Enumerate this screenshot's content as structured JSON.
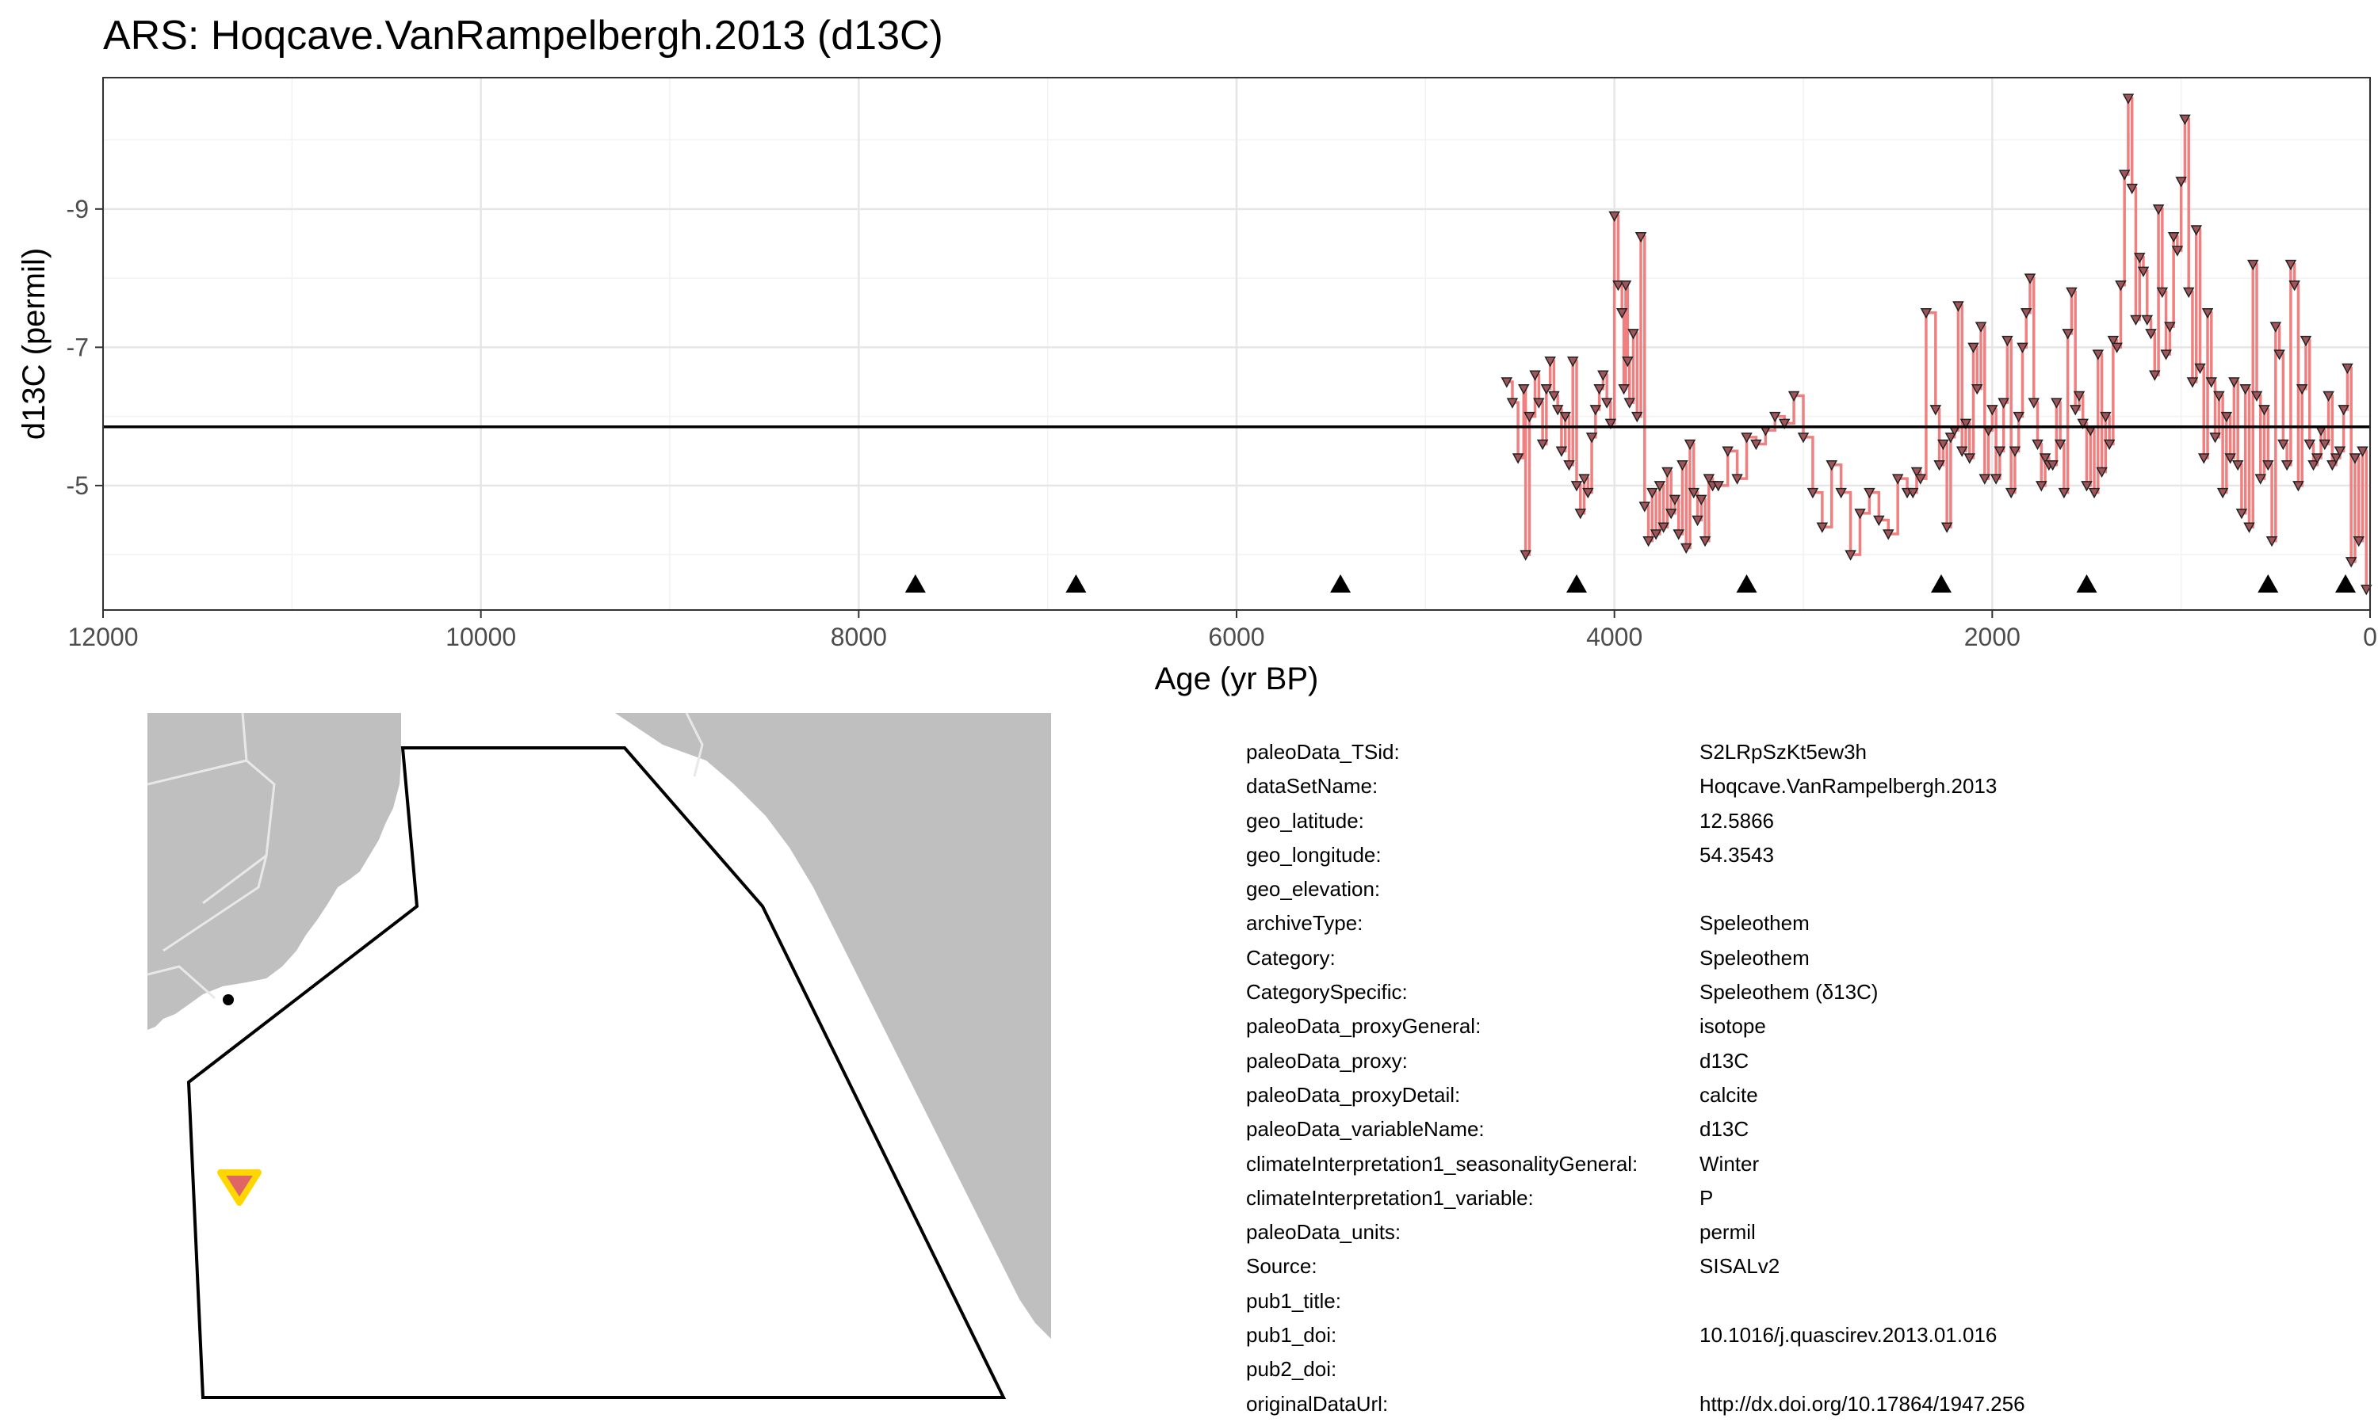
{
  "chart_data": {
    "type": "line",
    "title": "ARS: Hoqcave.VanRampelbergh.2013 (d13C)",
    "xlabel": "Age (yr BP)",
    "ylabel": "d13C (permil)",
    "x_reversed": true,
    "y_reversed": true,
    "xlim": [
      12000,
      0
    ],
    "ylim": [
      -10.9,
      -3.2
    ],
    "x_ticks": [
      12000,
      10000,
      8000,
      6000,
      4000,
      2000,
      0
    ],
    "x_tick_labels": [
      "12000",
      "10000",
      "8000",
      "6000",
      "4000",
      "2000",
      "0"
    ],
    "y_ticks": [
      -9,
      -7,
      -5
    ],
    "y_tick_labels": [
      "-9",
      "-7",
      "-5"
    ],
    "grid": true,
    "mean_line": -5.85,
    "series": [
      {
        "color": "#f08080",
        "marker": "triangle-down",
        "x": [
          4570,
          4540,
          4510,
          4480,
          4470,
          4450,
          4420,
          4400,
          4380,
          4360,
          4340,
          4320,
          4300,
          4280,
          4260,
          4240,
          4220,
          4200,
          4180,
          4160,
          4140,
          4120,
          4100,
          4080,
          4060,
          4040,
          4020,
          4000,
          3980,
          3960,
          3950,
          3940,
          3930,
          3920,
          3900,
          3880,
          3860,
          3840,
          3820,
          3800,
          3780,
          3760,
          3740,
          3720,
          3700,
          3680,
          3660,
          3640,
          3620,
          3600,
          3580,
          3560,
          3540,
          3520,
          3500,
          3480,
          3450,
          3400,
          3350,
          3300,
          3250,
          3200,
          3150,
          3100,
          3050,
          3000,
          2950,
          2900,
          2850,
          2800,
          2750,
          2700,
          2650,
          2600,
          2550,
          2500,
          2450,
          2420,
          2400,
          2380,
          2350,
          2300,
          2280,
          2260,
          2240,
          2220,
          2200,
          2180,
          2160,
          2140,
          2120,
          2100,
          2080,
          2060,
          2040,
          2020,
          2000,
          1980,
          1960,
          1940,
          1920,
          1900,
          1880,
          1860,
          1840,
          1820,
          1800,
          1780,
          1760,
          1740,
          1720,
          1700,
          1680,
          1660,
          1640,
          1620,
          1600,
          1580,
          1560,
          1540,
          1520,
          1500,
          1480,
          1460,
          1440,
          1420,
          1400,
          1380,
          1360,
          1340,
          1320,
          1300,
          1280,
          1260,
          1240,
          1220,
          1200,
          1180,
          1160,
          1140,
          1120,
          1100,
          1080,
          1060,
          1040,
          1020,
          1000,
          980,
          960,
          940,
          920,
          900,
          880,
          860,
          840,
          820,
          800,
          780,
          760,
          740,
          720,
          700,
          680,
          660,
          640,
          620,
          600,
          580,
          560,
          540,
          520,
          500,
          480,
          460,
          440,
          420,
          400,
          380,
          360,
          340,
          320,
          300,
          280,
          260,
          240,
          220,
          200,
          180,
          160,
          140,
          120,
          100,
          80,
          60,
          40,
          20
        ],
        "y": [
          -6.5,
          -6.2,
          -5.4,
          -6.4,
          -4.0,
          -6.0,
          -6.6,
          -6.2,
          -5.6,
          -6.4,
          -6.8,
          -6.3,
          -6.1,
          -5.5,
          -6.0,
          -5.3,
          -6.8,
          -5.0,
          -4.6,
          -5.1,
          -4.9,
          -5.7,
          -6.1,
          -6.4,
          -6.6,
          -6.2,
          -5.9,
          -8.9,
          -7.9,
          -7.5,
          -6.4,
          -7.9,
          -6.8,
          -6.2,
          -7.2,
          -6.0,
          -8.6,
          -4.7,
          -4.2,
          -4.9,
          -4.3,
          -5.0,
          -4.4,
          -5.2,
          -4.6,
          -4.8,
          -4.3,
          -5.3,
          -4.1,
          -5.6,
          -4.9,
          -4.5,
          -4.8,
          -4.2,
          -5.1,
          -5.0,
          -5.0,
          -5.5,
          -5.1,
          -5.7,
          -5.6,
          -5.8,
          -6.0,
          -5.9,
          -6.3,
          -5.7,
          -4.9,
          -4.4,
          -5.3,
          -4.9,
          -4.0,
          -4.6,
          -4.9,
          -4.5,
          -4.3,
          -5.1,
          -4.9,
          -4.9,
          -5.2,
          -5.1,
          -7.5,
          -6.1,
          -5.3,
          -5.6,
          -4.4,
          -5.7,
          -5.8,
          -7.6,
          -5.5,
          -5.9,
          -5.4,
          -7.0,
          -6.4,
          -7.3,
          -5.1,
          -5.8,
          -6.1,
          -5.1,
          -5.5,
          -6.2,
          -7.1,
          -4.9,
          -5.5,
          -6.0,
          -7.0,
          -7.5,
          -8.0,
          -6.2,
          -5.6,
          -5.0,
          -5.4,
          -5.3,
          -5.3,
          -6.2,
          -5.6,
          -4.9,
          -7.2,
          -7.8,
          -6.1,
          -6.3,
          -5.9,
          -5.0,
          -5.8,
          -4.9,
          -6.9,
          -5.2,
          -6.0,
          -5.6,
          -7.1,
          -7.0,
          -7.9,
          -9.5,
          -10.6,
          -9.3,
          -7.4,
          -8.3,
          -8.1,
          -7.4,
          -7.2,
          -6.6,
          -9.0,
          -7.8,
          -6.9,
          -7.3,
          -8.6,
          -8.4,
          -9.4,
          -10.3,
          -7.8,
          -6.5,
          -8.7,
          -6.7,
          -5.4,
          -7.5,
          -6.5,
          -5.7,
          -6.3,
          -4.9,
          -6.0,
          -5.4,
          -6.5,
          -5.3,
          -4.6,
          -6.4,
          -4.4,
          -8.2,
          -6.3,
          -5.1,
          -6.1,
          -5.3,
          -4.2,
          -7.3,
          -6.9,
          -5.6,
          -5.3,
          -8.2,
          -7.9,
          -5.0,
          -6.4,
          -7.1,
          -5.6,
          -5.3,
          -5.4,
          -5.8,
          -5.6,
          -6.3,
          -5.3,
          -5.4,
          -5.5,
          -6.1,
          -6.7,
          -3.9,
          -5.4,
          -4.2,
          -5.5,
          -3.5
        ]
      }
    ],
    "chron_control_ages": [
      7700,
      6850,
      5450,
      4200,
      3300,
      2270,
      1500,
      540,
      130
    ]
  },
  "map": {
    "land_color": "#bfbfbf",
    "border_color": "#e8e8e8",
    "polygon_color": "#000000",
    "site_marker": "triangle-down",
    "site_fill": "#e06666",
    "site_outline": "#ffd700"
  },
  "metadata": [
    {
      "key": "paleoData_TSid:",
      "value": "S2LRpSzKt5ew3h"
    },
    {
      "key": "dataSetName:",
      "value": "Hoqcave.VanRampelbergh.2013"
    },
    {
      "key": "geo_latitude:",
      "value": "12.5866"
    },
    {
      "key": "geo_longitude:",
      "value": "54.3543"
    },
    {
      "key": "geo_elevation:",
      "value": ""
    },
    {
      "key": "archiveType:",
      "value": "Speleothem"
    },
    {
      "key": "Category:",
      "value": "Speleothem"
    },
    {
      "key": "CategorySpecific:",
      "value": "Speleothem (δ13C)"
    },
    {
      "key": "paleoData_proxyGeneral:",
      "value": "isotope"
    },
    {
      "key": "paleoData_proxy:",
      "value": "d13C"
    },
    {
      "key": "paleoData_proxyDetail:",
      "value": "calcite"
    },
    {
      "key": "paleoData_variableName:",
      "value": "d13C"
    },
    {
      "key": "climateInterpretation1_seasonalityGeneral:",
      "value": "Winter"
    },
    {
      "key": "climateInterpretation1_variable:",
      "value": "P"
    },
    {
      "key": "paleoData_units:",
      "value": "permil"
    },
    {
      "key": "Source:",
      "value": "SISALv2"
    },
    {
      "key": "pub1_title:",
      "value": ""
    },
    {
      "key": "pub1_doi:",
      "value": "10.1016/j.quascirev.2013.01.016"
    },
    {
      "key": "pub2_doi:",
      "value": ""
    },
    {
      "key": "originalDataUrl:",
      "value": "http://dx.doi.org/10.17864/1947.256"
    }
  ]
}
